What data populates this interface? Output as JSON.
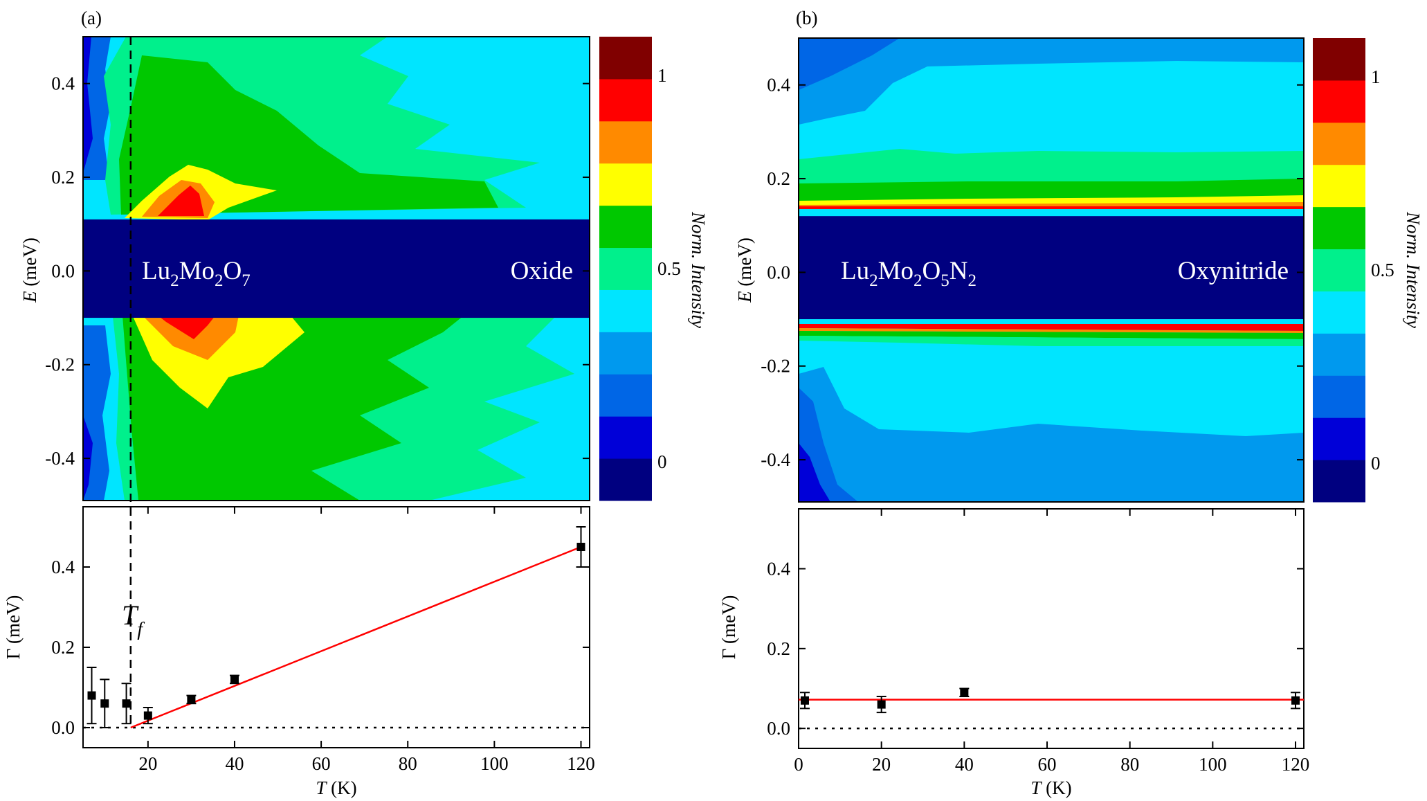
{
  "chart_data": [
    {
      "panel": "(a)",
      "type": "heatmap",
      "ylabel": "(meV)",
      "ylabel_symbol": "E",
      "ylim": [
        -0.49,
        0.5
      ],
      "yticks": [
        "-0.4",
        "-0.2",
        "0.0",
        "0.2",
        "0.4"
      ],
      "ytick_values": [
        -0.4,
        -0.2,
        0.0,
        0.2,
        0.4
      ],
      "xlim": [
        5,
        122
      ],
      "elastic_band_meV": [
        -0.1,
        0.11
      ],
      "annotations": {
        "sample_base": "Lu",
        "sample_sub1": "2",
        "sample_mid": "Mo",
        "sample_sub2": "2",
        "sample_o": "O",
        "sample_sub3": "7",
        "sample_type": "Oxide"
      },
      "Tf_K": 16,
      "colorbar": {
        "title": "Norm. Intensity",
        "ticks": [
          "0",
          "0.5",
          "1"
        ],
        "tick_values": [
          0,
          0.5,
          1
        ],
        "range": [
          -0.1,
          1.1
        ],
        "levels": [
          "#000080",
          "#0000d8",
          "#0066e6",
          "#0099ee",
          "#00e5ff",
          "#00f08c",
          "#00c800",
          "#ffff00",
          "#ff8a00",
          "#ff0000",
          "#800000"
        ]
      }
    },
    {
      "panel": "(a)",
      "type": "scatter",
      "xlabel": "(K)",
      "xlabel_symbol": "T",
      "ylabel": "Γ (meV)",
      "xlim": [
        5,
        122
      ],
      "ylim": [
        -0.05,
        0.55
      ],
      "xticks": [
        "20",
        "40",
        "60",
        "80",
        "100",
        "120"
      ],
      "xtick_values": [
        20,
        40,
        60,
        80,
        100,
        120
      ],
      "yticks": [
        "0.0",
        "0.2",
        "0.4"
      ],
      "ytick_values": [
        0.0,
        0.2,
        0.4
      ],
      "points": [
        {
          "T": 7,
          "gamma": 0.08,
          "err": 0.07
        },
        {
          "T": 10,
          "gamma": 0.06,
          "err": 0.06
        },
        {
          "T": 15,
          "gamma": 0.06,
          "err": 0.05
        },
        {
          "T": 20,
          "gamma": 0.03,
          "err": 0.02
        },
        {
          "T": 30,
          "gamma": 0.07,
          "err": 0.01
        },
        {
          "T": 40,
          "gamma": 0.12,
          "err": 0.01
        },
        {
          "T": 120,
          "gamma": 0.45,
          "err": 0.05
        }
      ],
      "fit_line": {
        "x": [
          16,
          120
        ],
        "y": [
          0.0,
          0.45
        ],
        "color": "#ff0000"
      },
      "zero_line": 0.0,
      "Tf_K": 16,
      "Tf_label": "T",
      "Tf_sub": "f"
    },
    {
      "panel": "(b)",
      "type": "heatmap",
      "ylabel": "(meV)",
      "ylabel_symbol": "E",
      "ylim": [
        -0.49,
        0.5
      ],
      "yticks": [
        "-0.4",
        "-0.2",
        "0.0",
        "0.2",
        "0.4"
      ],
      "ytick_values": [
        -0.4,
        -0.2,
        0.0,
        0.2,
        0.4
      ],
      "xlim": [
        0,
        122
      ],
      "elastic_band_meV": [
        -0.1,
        0.12
      ],
      "annotations": {
        "sample_base": "Lu",
        "sample_sub1": "2",
        "sample_mid": "Mo",
        "sample_sub2": "2",
        "sample_o": "O",
        "sample_sub3": "5",
        "sample_n": "N",
        "sample_sub4": "2",
        "sample_type": "Oxynitride"
      },
      "colorbar": {
        "title": "Norm. Intensity",
        "ticks": [
          "0",
          "0.5",
          "1"
        ],
        "tick_values": [
          0,
          0.5,
          1
        ],
        "range": [
          -0.1,
          1.1
        ],
        "levels": [
          "#000080",
          "#0000d8",
          "#0066e6",
          "#0099ee",
          "#00e5ff",
          "#00f08c",
          "#00c800",
          "#ffff00",
          "#ff8a00",
          "#ff0000",
          "#800000"
        ]
      }
    },
    {
      "panel": "(b)",
      "type": "scatter",
      "xlabel": "(K)",
      "xlabel_symbol": "T",
      "ylabel": "Γ (meV)",
      "xlim": [
        0,
        122
      ],
      "ylim": [
        -0.05,
        0.55
      ],
      "xticks": [
        "0",
        "20",
        "40",
        "60",
        "80",
        "100",
        "120"
      ],
      "xtick_values": [
        0,
        20,
        40,
        60,
        80,
        100,
        120
      ],
      "yticks": [
        "0.0",
        "0.2",
        "0.4"
      ],
      "ytick_values": [
        0.0,
        0.2,
        0.4
      ],
      "points": [
        {
          "T": 1.5,
          "gamma": 0.07,
          "err": 0.02
        },
        {
          "T": 20,
          "gamma": 0.06,
          "err": 0.02
        },
        {
          "T": 40,
          "gamma": 0.09,
          "err": 0.01
        },
        {
          "T": 120,
          "gamma": 0.07,
          "err": 0.02
        }
      ],
      "fit_line": {
        "x": [
          0,
          122
        ],
        "y": [
          0.072,
          0.072
        ],
        "color": "#ff0000"
      },
      "zero_line": 0.0
    }
  ]
}
